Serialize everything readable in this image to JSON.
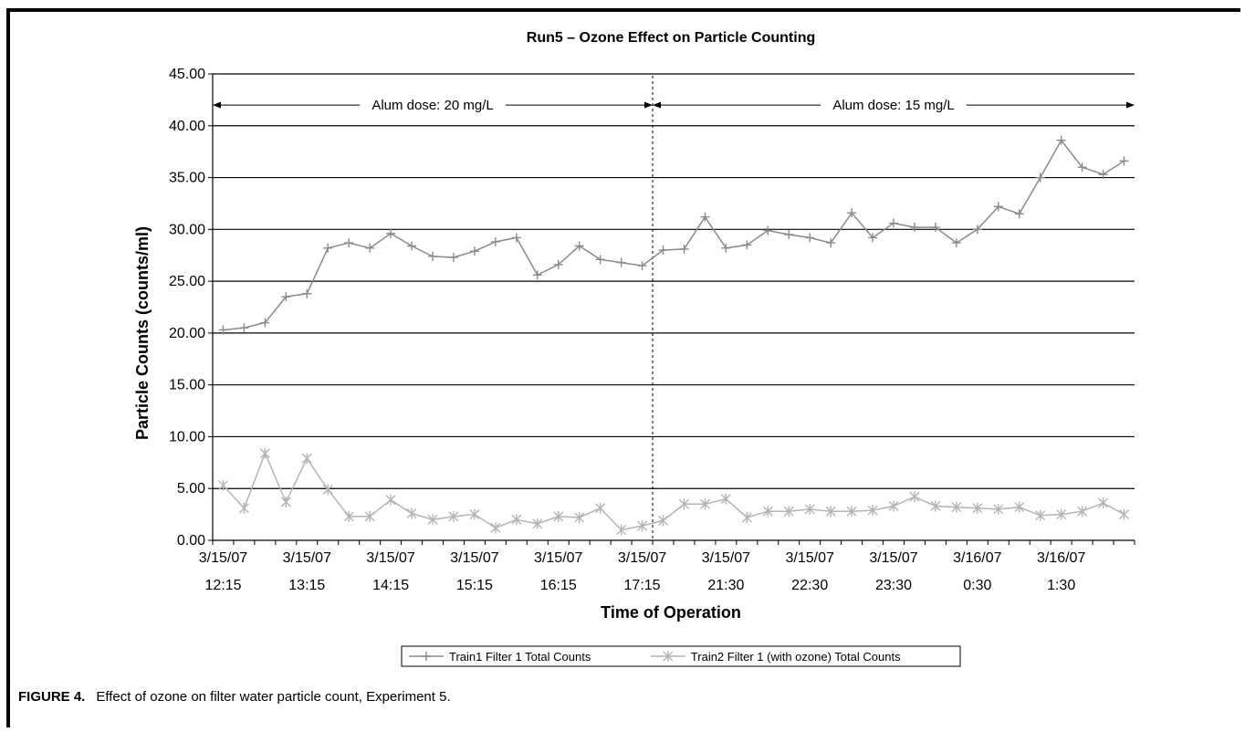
{
  "chart_data": {
    "type": "line",
    "title": "Run5 – Ozone Effect on Particle Counting",
    "xlabel": "Time of Operation",
    "ylabel": "Particle Counts (counts/ml)",
    "ylim": [
      0,
      45
    ],
    "yticks": [
      "0.00",
      "5.00",
      "10.00",
      "15.00",
      "20.00",
      "25.00",
      "30.00",
      "35.00",
      "40.00",
      "45.00"
    ],
    "grid": true,
    "legend_position": "bottom",
    "x_tick_labels": [
      {
        "index": 0,
        "line1": "3/15/07",
        "line2": "12:15"
      },
      {
        "index": 4,
        "line1": "3/15/07",
        "line2": "13:15"
      },
      {
        "index": 8,
        "line1": "3/15/07",
        "line2": "14:15"
      },
      {
        "index": 12,
        "line1": "3/15/07",
        "line2": "15:15"
      },
      {
        "index": 16,
        "line1": "3/15/07",
        "line2": "16:15"
      },
      {
        "index": 20,
        "line1": "3/15/07",
        "line2": "17:15"
      },
      {
        "index": 24,
        "line1": "3/15/07",
        "line2": "21:30"
      },
      {
        "index": 28,
        "line1": "3/15/07",
        "line2": "22:30"
      },
      {
        "index": 32,
        "line1": "3/15/07",
        "line2": "23:30"
      },
      {
        "index": 36,
        "line1": "3/16/07",
        "line2": "0:30"
      },
      {
        "index": 40,
        "line1": "3/16/07",
        "line2": "1:30"
      }
    ],
    "series": [
      {
        "name": "Train1 Filter 1 Total Counts",
        "marker": "plus",
        "color": "#8a8a8a",
        "values": [
          20.3,
          20.5,
          21.0,
          23.5,
          23.8,
          28.2,
          28.7,
          28.2,
          29.6,
          28.4,
          27.4,
          27.3,
          27.9,
          28.8,
          29.2,
          25.6,
          26.6,
          28.4,
          27.1,
          26.8,
          26.5,
          28.0,
          28.1,
          31.2,
          28.2,
          28.5,
          29.9,
          29.5,
          29.2,
          28.7,
          31.6,
          29.2,
          30.6,
          30.2,
          30.2,
          28.7,
          30.0,
          32.2,
          31.5,
          35.0,
          38.6,
          36.0,
          35.3,
          36.6
        ]
      },
      {
        "name": "Train2 Filter 1 (with ozone) Total Counts",
        "marker": "asterisk",
        "color": "#b4b4b4",
        "values": [
          5.3,
          3.1,
          8.4,
          3.7,
          7.9,
          4.9,
          2.3,
          2.3,
          3.9,
          2.6,
          2.0,
          2.3,
          2.5,
          1.2,
          2.0,
          1.6,
          2.3,
          2.2,
          3.1,
          1.0,
          1.4,
          1.9,
          3.5,
          3.5,
          4.0,
          2.2,
          2.8,
          2.8,
          3.0,
          2.8,
          2.8,
          2.9,
          3.3,
          4.2,
          3.3,
          3.2,
          3.1,
          3.0,
          3.2,
          2.4,
          2.5,
          2.8,
          3.6,
          2.5
        ]
      }
    ],
    "annotations": [
      {
        "text": "Alum dose: 20 mg/L",
        "from_index": -0.5,
        "to_index": 20.5,
        "y": 42
      },
      {
        "text": "Alum dose: 15 mg/L",
        "from_index": 20.5,
        "to_index": 43.5,
        "y": 42
      }
    ],
    "divider_index": 20.5
  },
  "caption": {
    "label": "FIGURE 4.",
    "text": "Effect of ozone on filter water particle count, Experiment 5."
  }
}
